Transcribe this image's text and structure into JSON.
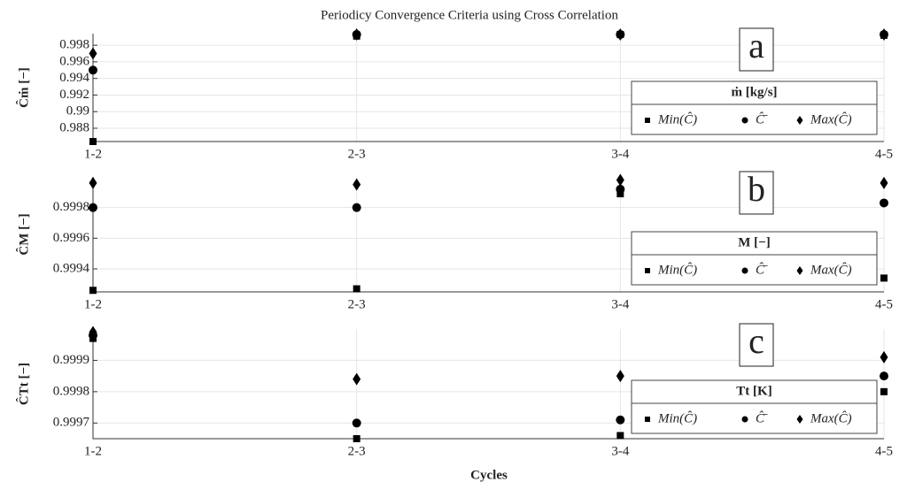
{
  "chart_data": [
    {
      "type": "scatter",
      "title": "Periodicy Convergence Criteria using Cross Correlation",
      "ylabel": "Ĉṁ [−]",
      "panel_label": "a",
      "legend_title": "ṁ [kg/s]",
      "categories": [
        "1-2",
        "2-3",
        "3-4",
        "4-5"
      ],
      "ylim": [
        0.9864,
        0.9994
      ],
      "yticks": [
        0.988,
        0.99,
        0.992,
        0.994,
        0.996,
        0.998
      ],
      "grid": true,
      "series": [
        {
          "name": "Min(Ĉ)",
          "marker": "square",
          "color": "#000000",
          "values": [
            0.9864,
            0.9991,
            0.9993,
            0.9992
          ]
        },
        {
          "name": "Ĉ̄",
          "marker": "circle",
          "color": "#000000",
          "values": [
            0.995,
            0.9993,
            0.9993,
            0.9993
          ]
        },
        {
          "name": "Max(Ĉ)",
          "marker": "diamond",
          "color": "#000000",
          "values": [
            0.997,
            0.9993,
            0.9993,
            0.9993
          ]
        }
      ]
    },
    {
      "type": "scatter",
      "ylabel": "ĈM [−]",
      "panel_label": "b",
      "legend_title": "M [−]",
      "categories": [
        "1-2",
        "2-3",
        "3-4",
        "4-5"
      ],
      "ylim": [
        0.99925,
        1.0
      ],
      "yticks": [
        0.9994,
        0.9996,
        0.9998
      ],
      "grid": true,
      "series": [
        {
          "name": "Min(Ĉ)",
          "marker": "square",
          "color": "#000000",
          "values": [
            0.99926,
            0.99927,
            0.99989,
            0.99934
          ]
        },
        {
          "name": "Ĉ̄",
          "marker": "circle",
          "color": "#000000",
          "values": [
            0.9998,
            0.9998,
            0.99992,
            0.99983
          ]
        },
        {
          "name": "Max(Ĉ)",
          "marker": "diamond",
          "color": "#000000",
          "values": [
            0.99996,
            0.99995,
            0.99998,
            0.99996
          ]
        }
      ]
    },
    {
      "type": "scatter",
      "ylabel": "ĈTt [−]",
      "panel_label": "c",
      "legend_title": "Tt [K]",
      "xlabel": "Cycles",
      "categories": [
        "1-2",
        "2-3",
        "3-4",
        "4-5"
      ],
      "ylim": [
        0.99965,
        1.0
      ],
      "yticks": [
        0.9997,
        0.9998,
        0.9999
      ],
      "grid": true,
      "series": [
        {
          "name": "Min(Ĉ)",
          "marker": "square",
          "color": "#000000",
          "values": [
            0.99997,
            0.99965,
            0.99966,
            0.9998
          ]
        },
        {
          "name": "Ĉ̄",
          "marker": "circle",
          "color": "#000000",
          "values": [
            0.99998,
            0.9997,
            0.99971,
            0.99985
          ]
        },
        {
          "name": "Max(Ĉ)",
          "marker": "diamond",
          "color": "#000000",
          "values": [
            0.99999,
            0.99984,
            0.99985,
            0.99991
          ]
        }
      ]
    }
  ]
}
